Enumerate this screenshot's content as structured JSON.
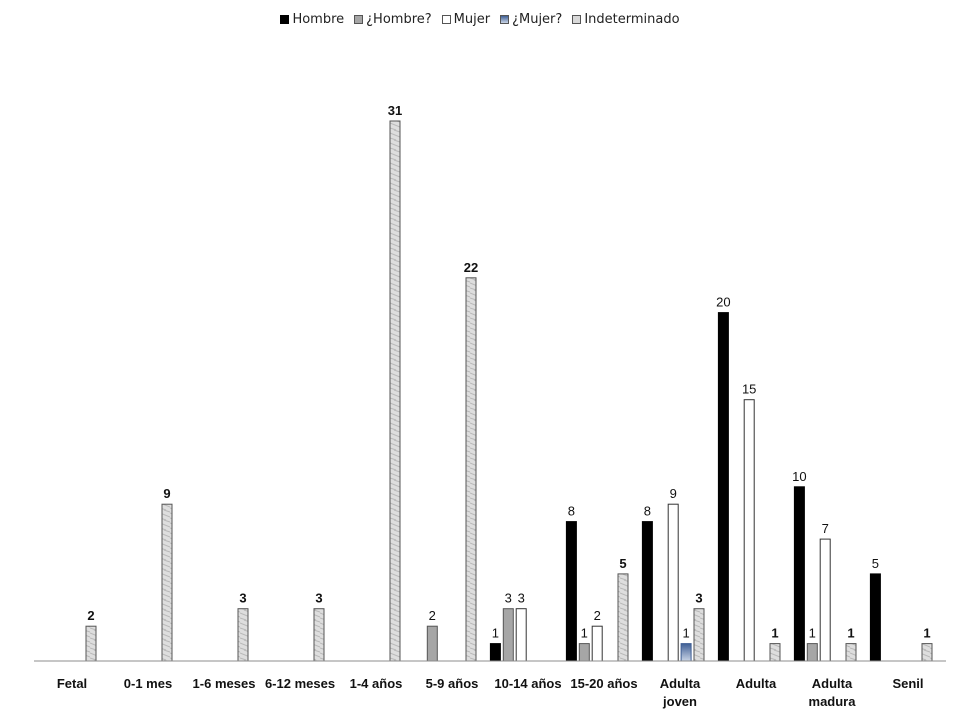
{
  "chart_data": {
    "type": "bar",
    "title": "",
    "xlabel": "",
    "ylabel": "",
    "ylim": [
      0,
      31
    ],
    "grid": false,
    "legend_position": "top",
    "categories": [
      [
        "Fetal"
      ],
      [
        "0-1 mes"
      ],
      [
        "1-6 meses"
      ],
      [
        "6-12 meses"
      ],
      [
        "1-4 años"
      ],
      [
        "5-9 años"
      ],
      [
        "10-14 años"
      ],
      [
        "15-20 años"
      ],
      [
        "Adulta",
        "joven"
      ],
      [
        "Adulta"
      ],
      [
        "Adulta",
        "madura"
      ],
      [
        "Senil"
      ]
    ],
    "series": [
      {
        "name": "Hombre",
        "color": "#000000",
        "values": [
          null,
          null,
          null,
          null,
          null,
          null,
          1,
          8,
          8,
          20,
          10,
          5
        ]
      },
      {
        "name": "¿Hombre?",
        "color": "#a6a6a6",
        "values": [
          null,
          null,
          null,
          null,
          null,
          2,
          3,
          1,
          null,
          null,
          1,
          null
        ]
      },
      {
        "name": "Mujer",
        "color": "#ffffff",
        "values": [
          null,
          null,
          null,
          null,
          null,
          null,
          3,
          2,
          9,
          15,
          7,
          null
        ]
      },
      {
        "name": "¿Mujer?",
        "color": "#5b78a8",
        "values": [
          null,
          null,
          null,
          null,
          null,
          null,
          null,
          null,
          1,
          null,
          null,
          null
        ]
      },
      {
        "name": "Indeterminado",
        "color": "#d9d9d9",
        "values": [
          2,
          9,
          3,
          3,
          31,
          22,
          null,
          5,
          3,
          1,
          1,
          1
        ]
      }
    ],
    "bold_labels": [
      [
        false,
        false,
        false,
        false,
        false,
        false,
        false,
        false,
        false,
        false,
        false,
        false
      ],
      [
        false,
        false,
        false,
        false,
        false,
        false,
        false,
        false,
        false,
        false,
        false,
        false
      ],
      [
        false,
        false,
        false,
        false,
        false,
        false,
        false,
        false,
        false,
        false,
        false,
        false
      ],
      [
        false,
        false,
        false,
        false,
        false,
        false,
        false,
        false,
        false,
        false,
        false,
        false
      ],
      [
        true,
        true,
        true,
        true,
        true,
        true,
        false,
        true,
        true,
        true,
        true,
        true
      ]
    ]
  }
}
